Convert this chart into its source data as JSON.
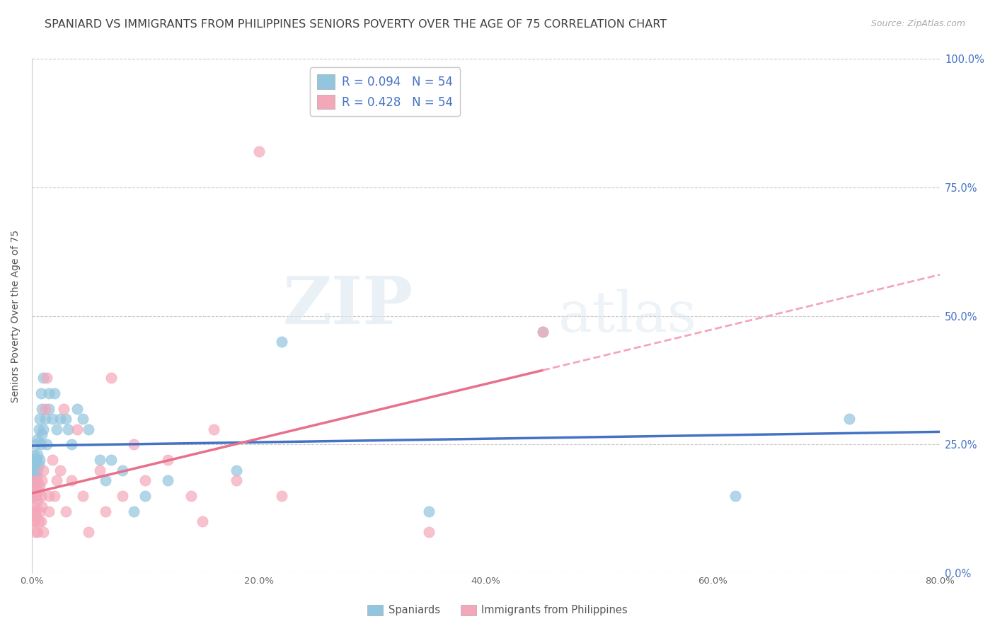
{
  "title": "SPANIARD VS IMMIGRANTS FROM PHILIPPINES SENIORS POVERTY OVER THE AGE OF 75 CORRELATION CHART",
  "source": "Source: ZipAtlas.com",
  "ylabel": "Seniors Poverty Over the Age of 75",
  "x_ticks": [
    0.0,
    0.2,
    0.4,
    0.6,
    0.8
  ],
  "y_ticks": [
    0.0,
    0.25,
    0.5,
    0.75,
    1.0
  ],
  "x_lim": [
    0.0,
    0.8
  ],
  "y_lim": [
    0.0,
    1.0
  ],
  "legend_stat_labels": [
    "R = 0.094   N = 54",
    "R = 0.428   N = 54"
  ],
  "legend_labels": [
    "Spaniards",
    "Immigrants from Philippines"
  ],
  "watermark_zip": "ZIP",
  "watermark_atlas": "atlas",
  "blue_scatter_color": "#92c5de",
  "pink_scatter_color": "#f4a7b9",
  "blue_line_color": "#4472c4",
  "pink_line_color": "#e8708a",
  "pink_dash_color": "#f4a7b9",
  "grid_color": "#c8c8c8",
  "background_color": "#ffffff",
  "title_color": "#404040",
  "right_tick_color": "#4472c4",
  "title_fontsize": 11.5,
  "axis_label_fontsize": 10,
  "tick_fontsize": 9.5,
  "source_fontsize": 9,
  "spaniards_x": [
    0.001,
    0.001,
    0.001,
    0.002,
    0.002,
    0.002,
    0.002,
    0.003,
    0.003,
    0.003,
    0.003,
    0.004,
    0.004,
    0.004,
    0.005,
    0.005,
    0.005,
    0.006,
    0.006,
    0.007,
    0.007,
    0.008,
    0.008,
    0.009,
    0.009,
    0.01,
    0.01,
    0.012,
    0.013,
    0.015,
    0.015,
    0.018,
    0.02,
    0.022,
    0.025,
    0.03,
    0.032,
    0.035,
    0.04,
    0.045,
    0.05,
    0.06,
    0.065,
    0.07,
    0.08,
    0.09,
    0.1,
    0.12,
    0.18,
    0.22,
    0.35,
    0.45,
    0.62,
    0.72
  ],
  "spaniards_y": [
    0.18,
    0.2,
    0.22,
    0.17,
    0.19,
    0.21,
    0.23,
    0.18,
    0.2,
    0.22,
    0.15,
    0.19,
    0.22,
    0.25,
    0.2,
    0.23,
    0.26,
    0.21,
    0.28,
    0.22,
    0.3,
    0.25,
    0.35,
    0.27,
    0.32,
    0.28,
    0.38,
    0.3,
    0.25,
    0.32,
    0.35,
    0.3,
    0.35,
    0.28,
    0.3,
    0.3,
    0.28,
    0.25,
    0.32,
    0.3,
    0.28,
    0.22,
    0.18,
    0.22,
    0.2,
    0.12,
    0.15,
    0.18,
    0.2,
    0.45,
    0.12,
    0.47,
    0.15,
    0.3
  ],
  "philippines_x": [
    0.001,
    0.001,
    0.001,
    0.001,
    0.002,
    0.002,
    0.002,
    0.003,
    0.003,
    0.003,
    0.004,
    0.004,
    0.005,
    0.005,
    0.005,
    0.006,
    0.006,
    0.007,
    0.007,
    0.008,
    0.008,
    0.009,
    0.009,
    0.01,
    0.01,
    0.012,
    0.013,
    0.015,
    0.015,
    0.018,
    0.02,
    0.022,
    0.025,
    0.028,
    0.03,
    0.035,
    0.04,
    0.045,
    0.05,
    0.06,
    0.065,
    0.07,
    0.08,
    0.09,
    0.1,
    0.12,
    0.14,
    0.15,
    0.16,
    0.18,
    0.2,
    0.22,
    0.35,
    0.45
  ],
  "philippines_y": [
    0.18,
    0.15,
    0.12,
    0.1,
    0.16,
    0.13,
    0.1,
    0.17,
    0.12,
    0.08,
    0.15,
    0.11,
    0.18,
    0.14,
    0.08,
    0.16,
    0.1,
    0.17,
    0.12,
    0.15,
    0.1,
    0.18,
    0.13,
    0.2,
    0.08,
    0.32,
    0.38,
    0.15,
    0.12,
    0.22,
    0.15,
    0.18,
    0.2,
    0.32,
    0.12,
    0.18,
    0.28,
    0.15,
    0.08,
    0.2,
    0.12,
    0.38,
    0.15,
    0.25,
    0.18,
    0.22,
    0.15,
    0.1,
    0.28,
    0.18,
    0.82,
    0.15,
    0.08,
    0.47
  ]
}
